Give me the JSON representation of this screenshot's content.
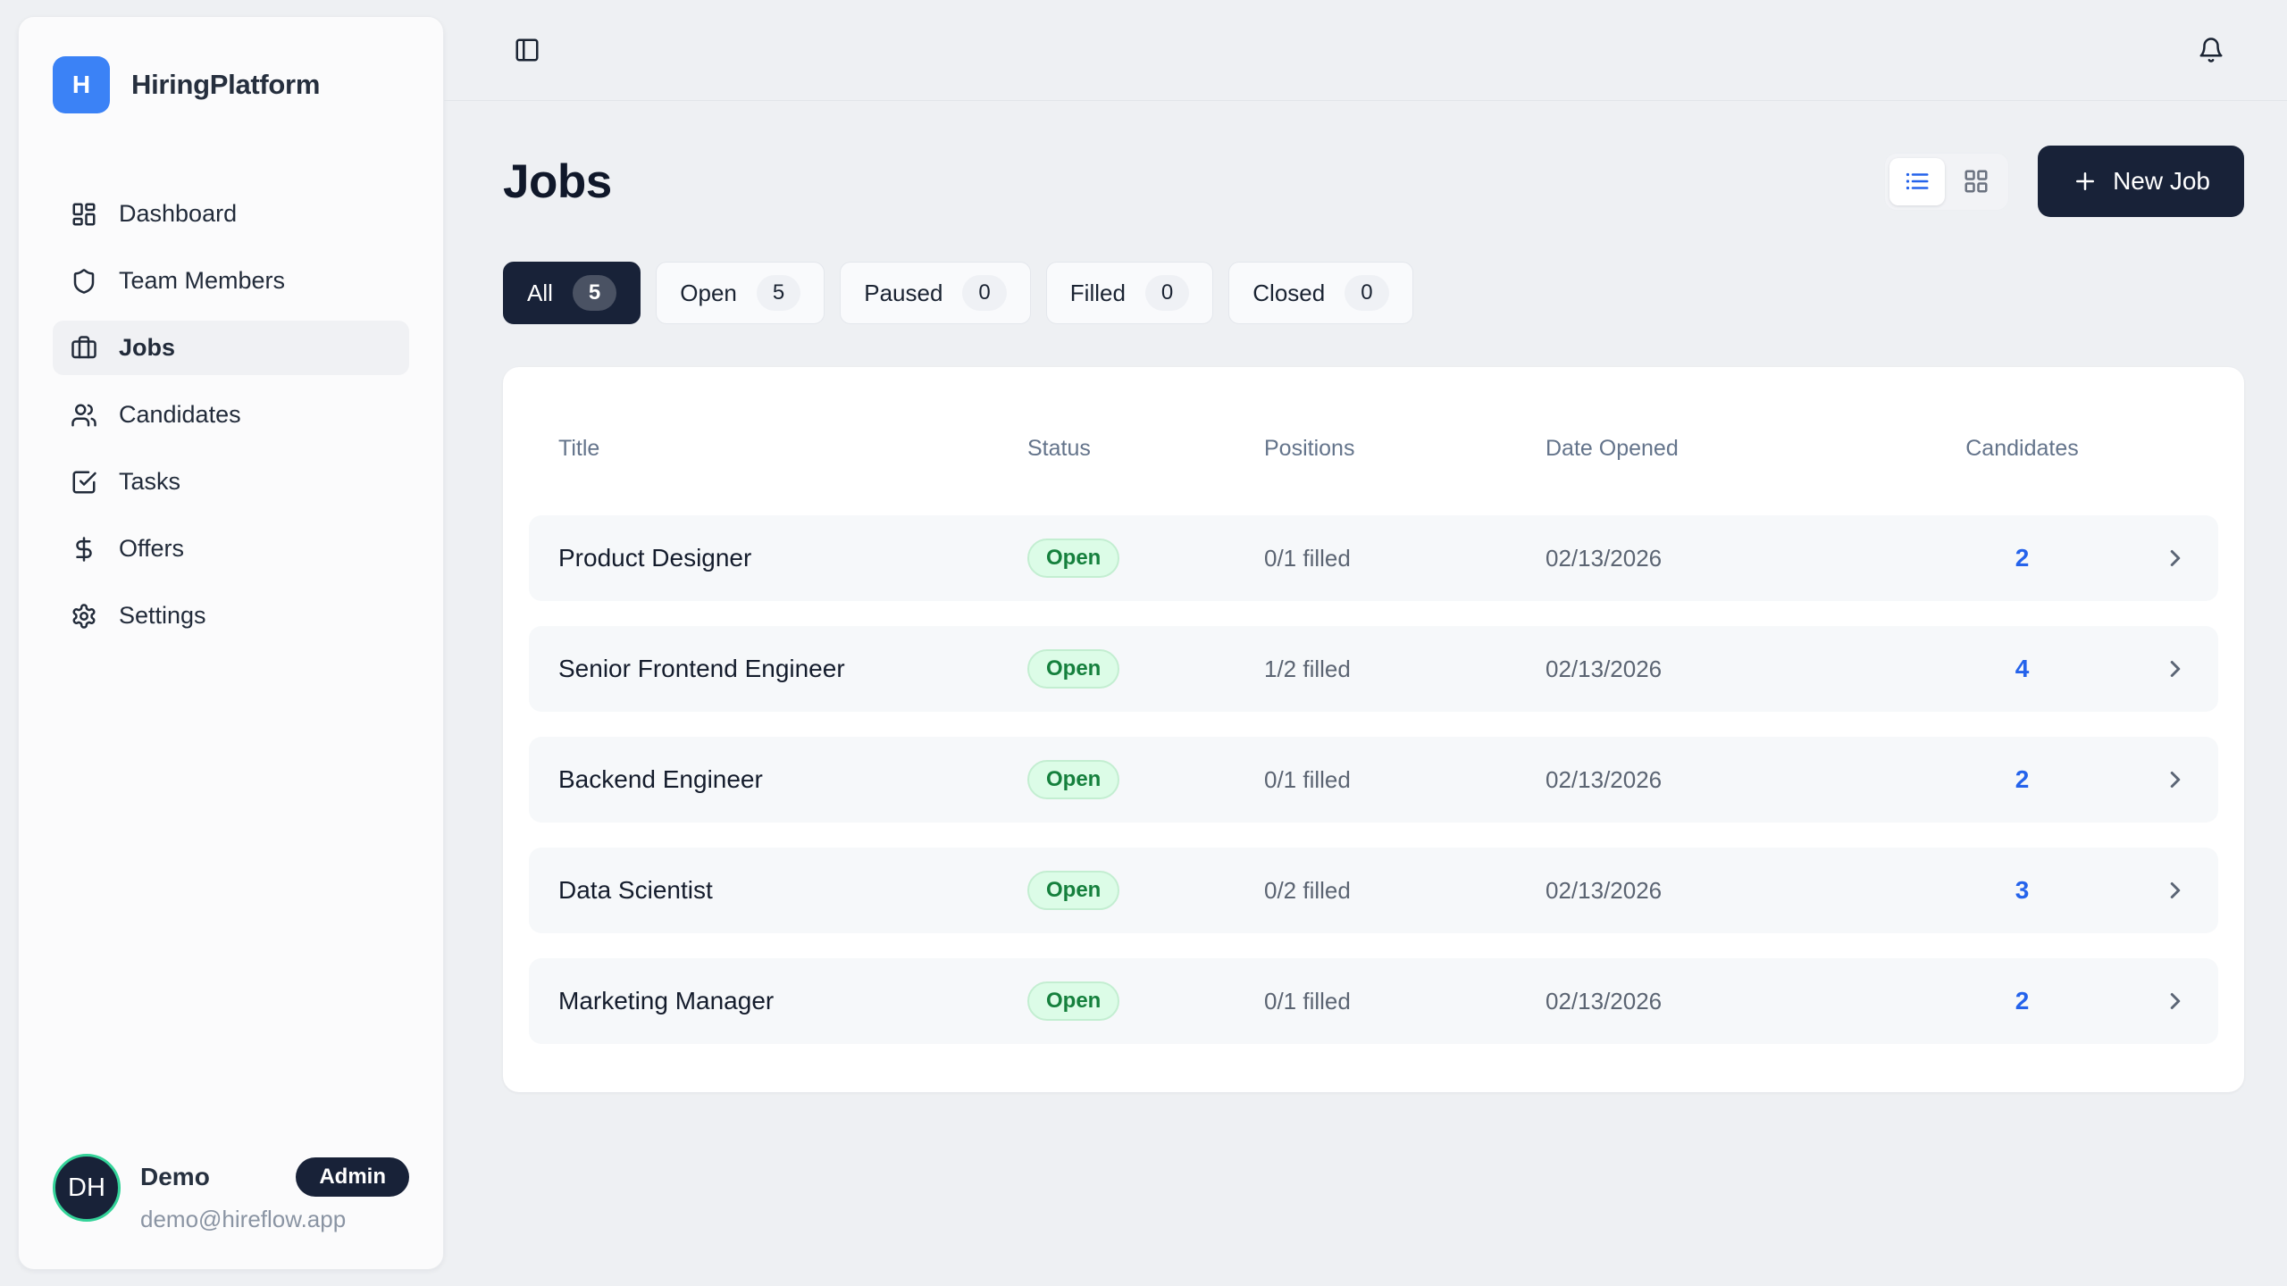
{
  "colors": {
    "page_bg": "#eef0f3",
    "accent_blue": "#3b82f6",
    "navy": "#182238",
    "avatar_ring": "#34d399",
    "open_badge_bg": "#dcfce7",
    "open_badge_text": "#15803d",
    "candidates_link": "#2563eb"
  },
  "brand": {
    "logo_letter": "H",
    "name": "HiringPlatform"
  },
  "sidebar": {
    "items": [
      {
        "id": "dashboard",
        "icon": "dashboard",
        "label": "Dashboard",
        "active": false
      },
      {
        "id": "team-members",
        "icon": "shield",
        "label": "Team Members",
        "active": false
      },
      {
        "id": "jobs",
        "icon": "briefcase",
        "label": "Jobs",
        "active": true
      },
      {
        "id": "candidates",
        "icon": "users",
        "label": "Candidates",
        "active": false
      },
      {
        "id": "tasks",
        "icon": "check-square",
        "label": "Tasks",
        "active": false
      },
      {
        "id": "offers",
        "icon": "dollar",
        "label": "Offers",
        "active": false
      },
      {
        "id": "settings",
        "icon": "gear",
        "label": "Settings",
        "active": false
      }
    ]
  },
  "user": {
    "initials": "DH",
    "name": "Demo",
    "role_badge": "Admin",
    "email": "demo@hireflow.app"
  },
  "page": {
    "title": "Jobs"
  },
  "toolbar": {
    "new_job_label": "New Job",
    "view_options": [
      "list",
      "grid"
    ],
    "active_view": "list"
  },
  "filters": {
    "tabs": [
      {
        "id": "all",
        "label": "All",
        "count": "5",
        "active": true
      },
      {
        "id": "open",
        "label": "Open",
        "count": "5",
        "active": false
      },
      {
        "id": "paused",
        "label": "Paused",
        "count": "0",
        "active": false
      },
      {
        "id": "filled",
        "label": "Filled",
        "count": "0",
        "active": false
      },
      {
        "id": "closed",
        "label": "Closed",
        "count": "0",
        "active": false
      }
    ]
  },
  "table": {
    "columns": [
      "Title",
      "Status",
      "Positions",
      "Date Opened",
      "Candidates"
    ],
    "rows": [
      {
        "title": "Product Designer",
        "status": "Open",
        "positions": "0/1 filled",
        "date_opened": "02/13/2026",
        "candidates": "2"
      },
      {
        "title": "Senior Frontend Engineer",
        "status": "Open",
        "positions": "1/2 filled",
        "date_opened": "02/13/2026",
        "candidates": "4"
      },
      {
        "title": "Backend Engineer",
        "status": "Open",
        "positions": "0/1 filled",
        "date_opened": "02/13/2026",
        "candidates": "2"
      },
      {
        "title": "Data Scientist",
        "status": "Open",
        "positions": "0/2 filled",
        "date_opened": "02/13/2026",
        "candidates": "3"
      },
      {
        "title": "Marketing Manager",
        "status": "Open",
        "positions": "0/1 filled",
        "date_opened": "02/13/2026",
        "candidates": "2"
      }
    ]
  }
}
